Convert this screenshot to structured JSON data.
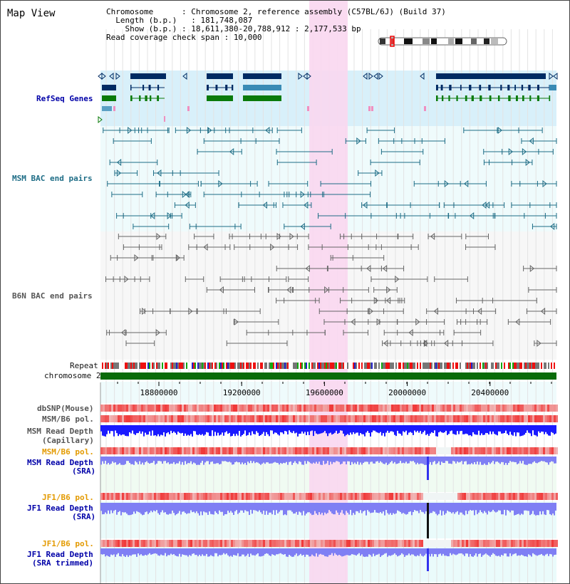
{
  "title": "Map View",
  "info": {
    "chromosome_key": "Chromosome",
    "chromosome_val": ": Chromosome 2, reference assembly (C57BL/6J) (Build 37)",
    "length_key": "Length (b.p.)",
    "length_val": ": 181,748,087",
    "show_key": "Show (b.p.)",
    "show_val": ": 18,611,380-20,788,912 : 2,177,533 bp",
    "span_key": "Read coverage check span",
    "span_val": ": 10,000"
  },
  "tracks": {
    "refseq": "RefSeq Genes",
    "msm_bac": "MSM BAC end pairs",
    "b6n_bac": "B6N BAC end pairs",
    "repeat": "Repeat",
    "chromosome": "chromosome 2",
    "dbsnp": "dbSNP(Mouse)",
    "msm_b6_pol_1": "MSM/B6 pol.",
    "msm_read_cap_1": "MSM Read Depth",
    "msm_read_cap_2": "(Capillary)",
    "msm_b6_pol_2": "MSM/B6 pol.",
    "msm_read_sra_1": "MSM Read Depth",
    "msm_read_sra_2": "(SRA)",
    "jf1_b6_pol_1": "JF1/B6 pol.",
    "jf1_read_sra_1": "JF1 Read Depth",
    "jf1_read_sra_2": "(SRA)",
    "jf1_b6_pol_2": "JF1/B6 pol.",
    "jf1_read_trim_1": "JF1 Read Depth",
    "jf1_read_trim_2": "(SRA trimmed)"
  },
  "axis": {
    "ticks": [
      "18800000",
      "19200000",
      "19600000",
      "20000000",
      "20400000"
    ]
  },
  "colors": {
    "refseq_bg": "#d8f0fa",
    "bac_bg": "#effbfc",
    "highlight": "#f9d7f0",
    "navy": "#002b63",
    "teal": "#1e6d86",
    "gene_green": "#0a7a0a",
    "chromosome_green": "#0a6b0a",
    "depth_blue": "#1a1aff",
    "depth_light": "#7f7ff4"
  }
}
